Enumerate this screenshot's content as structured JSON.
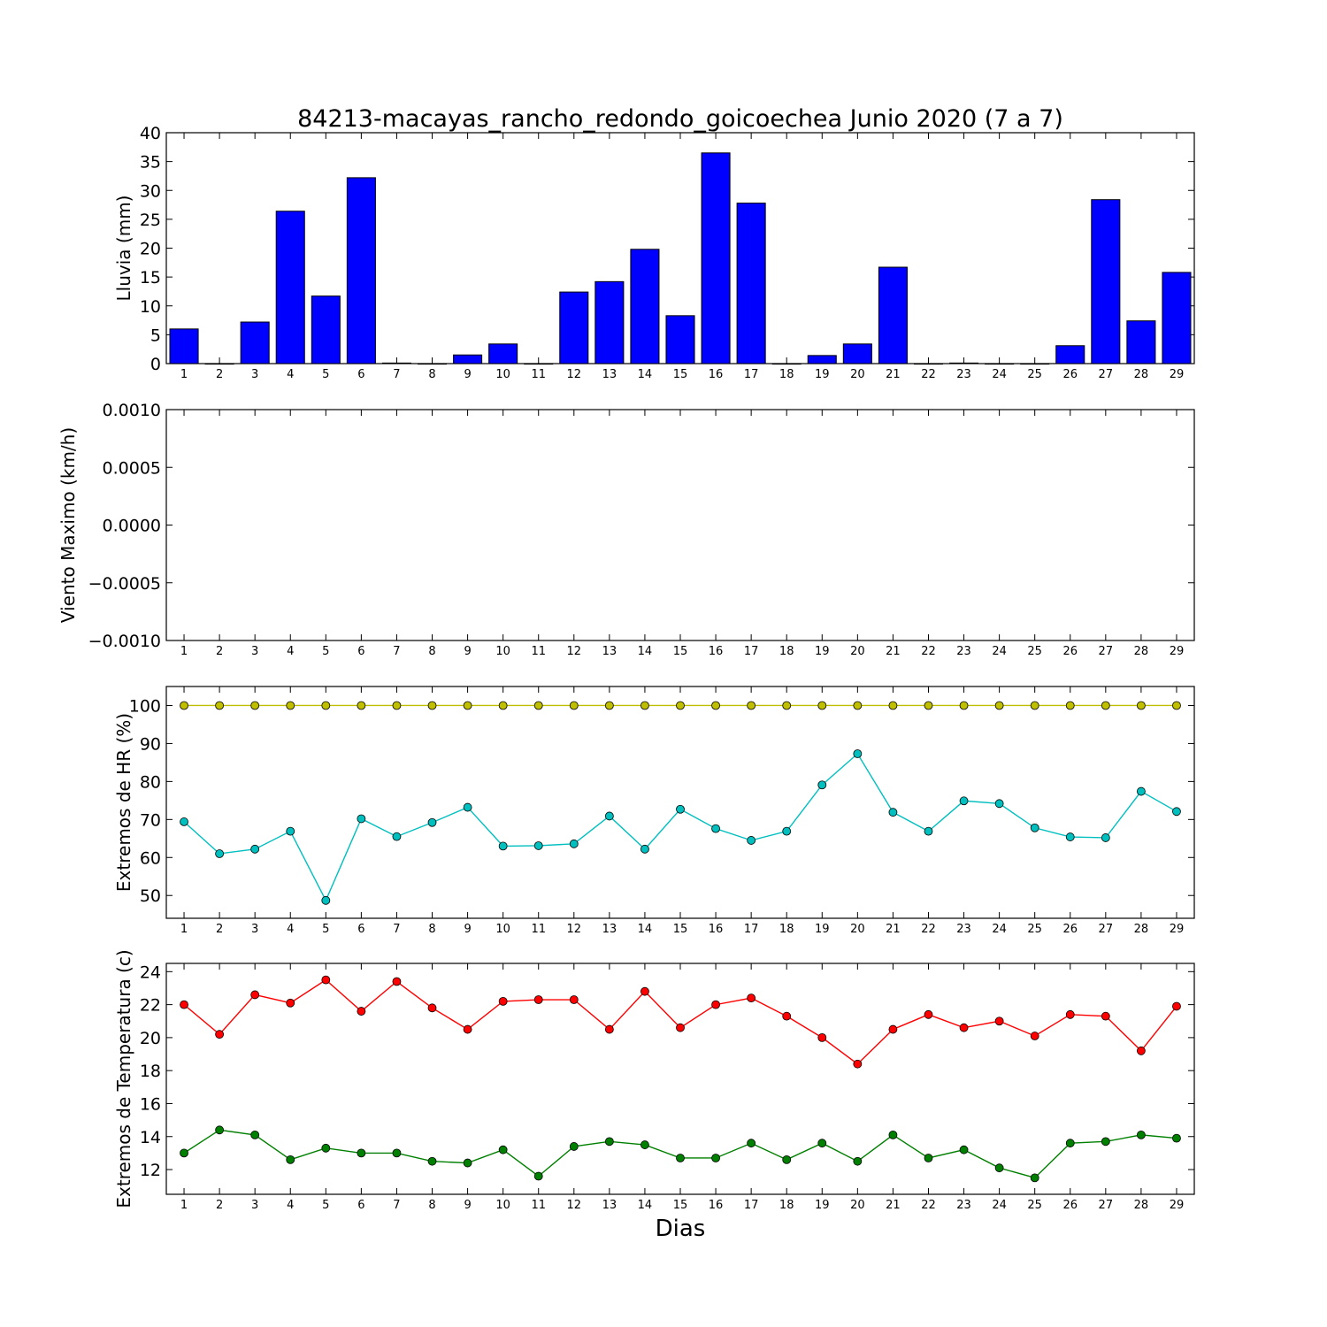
{
  "title": "84213-macayas_rancho_redondo_goicoechea Junio 2020  (7 a 7)",
  "xlabel": "Dias",
  "chart_data": [
    {
      "type": "bar",
      "ylabel": "Lluvia (mm)",
      "ylim": [
        0,
        40
      ],
      "yticks": [
        "0",
        "5",
        "10",
        "15",
        "20",
        "25",
        "30",
        "35",
        "40"
      ],
      "categories": [
        "1",
        "2",
        "3",
        "4",
        "5",
        "6",
        "7",
        "8",
        "9",
        "10",
        "11",
        "12",
        "13",
        "14",
        "15",
        "16",
        "17",
        "18",
        "19",
        "20",
        "21",
        "22",
        "23",
        "24",
        "25",
        "26",
        "27",
        "28",
        "29"
      ],
      "series": [
        {
          "color": "#0000ff",
          "values": [
            6.0,
            0,
            7.2,
            26.4,
            11.7,
            32.2,
            0.1,
            0,
            1.5,
            3.4,
            0,
            12.4,
            14.2,
            19.8,
            8.3,
            36.5,
            27.8,
            0,
            1.4,
            3.4,
            16.7,
            0,
            0.1,
            0,
            0,
            3.1,
            28.4,
            7.4,
            15.8
          ]
        }
      ]
    },
    {
      "type": "line",
      "ylabel": "Viento Maximo (km/h)",
      "ylim": [
        -0.001,
        0.001
      ],
      "yticks": [
        "−0.0010",
        "−0.0005",
        "0.0000",
        "0.0005",
        "0.0010"
      ],
      "categories": [
        "1",
        "2",
        "3",
        "4",
        "5",
        "6",
        "7",
        "8",
        "9",
        "10",
        "11",
        "12",
        "13",
        "14",
        "15",
        "16",
        "17",
        "18",
        "19",
        "20",
        "21",
        "22",
        "23",
        "24",
        "25",
        "26",
        "27",
        "28",
        "29"
      ],
      "series": []
    },
    {
      "type": "line",
      "ylabel": "Extremos de HR (%)",
      "ylim": [
        44,
        105
      ],
      "yticks": [
        "50",
        "60",
        "70",
        "80",
        "90",
        "100"
      ],
      "categories": [
        "1",
        "2",
        "3",
        "4",
        "5",
        "6",
        "7",
        "8",
        "9",
        "10",
        "11",
        "12",
        "13",
        "14",
        "15",
        "16",
        "17",
        "18",
        "19",
        "20",
        "21",
        "22",
        "23",
        "24",
        "25",
        "26",
        "27",
        "28",
        "29"
      ],
      "series": [
        {
          "color": "#bfbf00",
          "values": [
            100,
            100,
            100,
            100,
            100,
            100,
            100,
            100,
            100,
            100,
            100,
            100,
            100,
            100,
            100,
            100,
            100,
            100,
            100,
            100,
            100,
            100,
            100,
            100,
            100,
            100,
            100,
            100,
            100
          ]
        },
        {
          "color": "#00bfbf",
          "values": [
            69.4,
            61.0,
            62.2,
            66.9,
            48.7,
            70.2,
            65.5,
            69.2,
            73.2,
            63.0,
            63.1,
            63.6,
            70.9,
            62.2,
            72.7,
            67.6,
            64.5,
            66.9,
            79.1,
            87.3,
            71.9,
            66.9,
            74.9,
            74.2,
            67.8,
            65.4,
            65.2,
            77.4,
            72.1
          ]
        }
      ]
    },
    {
      "type": "line",
      "ylabel": "Extremos de Temperatura (c)",
      "ylim": [
        10.5,
        24.5
      ],
      "yticks": [
        "12",
        "14",
        "16",
        "18",
        "20",
        "22",
        "24"
      ],
      "categories": [
        "1",
        "2",
        "3",
        "4",
        "5",
        "6",
        "7",
        "8",
        "9",
        "10",
        "11",
        "12",
        "13",
        "14",
        "15",
        "16",
        "17",
        "18",
        "19",
        "20",
        "21",
        "22",
        "23",
        "24",
        "25",
        "26",
        "27",
        "28",
        "29"
      ],
      "series": [
        {
          "color": "#ff0000",
          "values": [
            22.0,
            20.2,
            22.6,
            22.1,
            23.5,
            21.6,
            23.4,
            21.8,
            20.5,
            22.2,
            22.3,
            22.3,
            20.5,
            22.8,
            20.6,
            22.0,
            22.4,
            21.3,
            20.0,
            18.4,
            20.5,
            21.4,
            20.6,
            21.0,
            20.1,
            21.4,
            21.3,
            19.2,
            21.9
          ]
        },
        {
          "color": "#008000",
          "values": [
            13.0,
            14.4,
            14.1,
            12.6,
            13.3,
            13.0,
            13.0,
            12.5,
            12.4,
            13.2,
            11.6,
            13.4,
            13.7,
            13.5,
            12.7,
            12.7,
            13.6,
            12.6,
            13.6,
            12.5,
            14.1,
            12.7,
            13.2,
            12.1,
            11.5,
            13.6,
            13.7,
            14.1,
            13.9
          ]
        }
      ]
    }
  ]
}
